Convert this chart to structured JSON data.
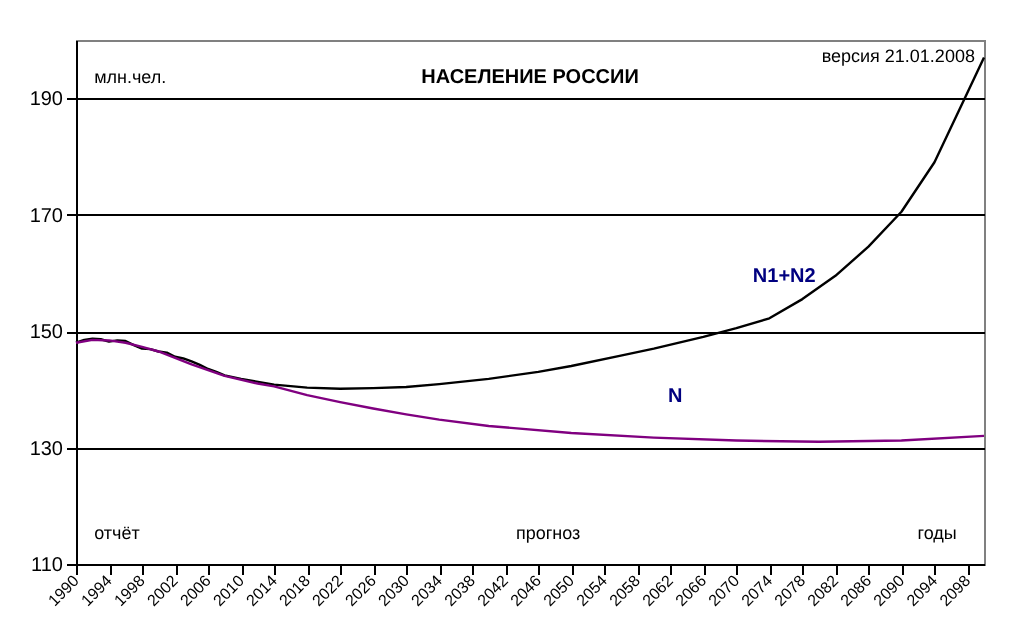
{
  "chart_data": {
    "type": "line",
    "title": "НАСЕЛЕНИЕ РОССИИ",
    "ylabel": "млн.чел.",
    "annotations": [
      "версия 21.01.2008",
      "отчёт",
      "прогноз",
      "годы"
    ],
    "series": [
      {
        "name": "N1+N2",
        "color": "#000000",
        "x": [
          1990,
          1991,
          1992,
          1993,
          1994,
          1995,
          1996,
          1997,
          1998,
          1999,
          2000,
          2001,
          2002,
          2003,
          2004,
          2005,
          2006,
          2007,
          2008,
          2009,
          2010,
          2014,
          2018,
          2022,
          2026,
          2030,
          2034,
          2040,
          2046,
          2050,
          2056,
          2060,
          2066,
          2070,
          2074,
          2078,
          2082,
          2086,
          2090,
          2094,
          2098,
          2100
        ],
        "values": [
          148,
          148.5,
          148.7,
          148.6,
          148.2,
          148.4,
          148.3,
          147.6,
          147.0,
          146.9,
          146.5,
          146.3,
          145.6,
          145.3,
          144.8,
          144.2,
          143.5,
          143.0,
          142.4,
          142.1,
          141.8,
          140.8,
          140.3,
          140.1,
          140.2,
          140.4,
          140.9,
          141.8,
          143.0,
          144.0,
          145.8,
          147.0,
          149.0,
          150.5,
          152.2,
          155.5,
          159.5,
          164.5,
          170.5,
          179,
          191,
          197
        ]
      },
      {
        "name": "N",
        "color": "#800080",
        "x": [
          1990,
          1992,
          1994,
          1996,
          1998,
          2000,
          2004,
          2008,
          2012,
          2014,
          2018,
          2022,
          2026,
          2030,
          2034,
          2040,
          2050,
          2060,
          2070,
          2080,
          2090,
          2100
        ],
        "values": [
          148,
          148.5,
          148.4,
          148,
          147.3,
          146.5,
          144.3,
          142.3,
          141,
          140.5,
          139,
          137.8,
          136.7,
          135.7,
          134.8,
          133.7,
          132.5,
          131.7,
          131.2,
          131,
          131.2,
          132
        ]
      }
    ],
    "xlim": [
      1990,
      2100
    ],
    "xticks": [
      1990,
      1994,
      1998,
      2002,
      2006,
      2010,
      2014,
      2018,
      2022,
      2026,
      2030,
      2034,
      2038,
      2042,
      2046,
      2050,
      2054,
      2058,
      2062,
      2066,
      2070,
      2074,
      2078,
      2082,
      2086,
      2090,
      2094,
      2098
    ],
    "ylim": [
      110,
      200
    ],
    "yticks": [
      110,
      130,
      150,
      170,
      190
    ],
    "grid": "y",
    "legend": false,
    "line_style": "solid",
    "marker": "none"
  }
}
